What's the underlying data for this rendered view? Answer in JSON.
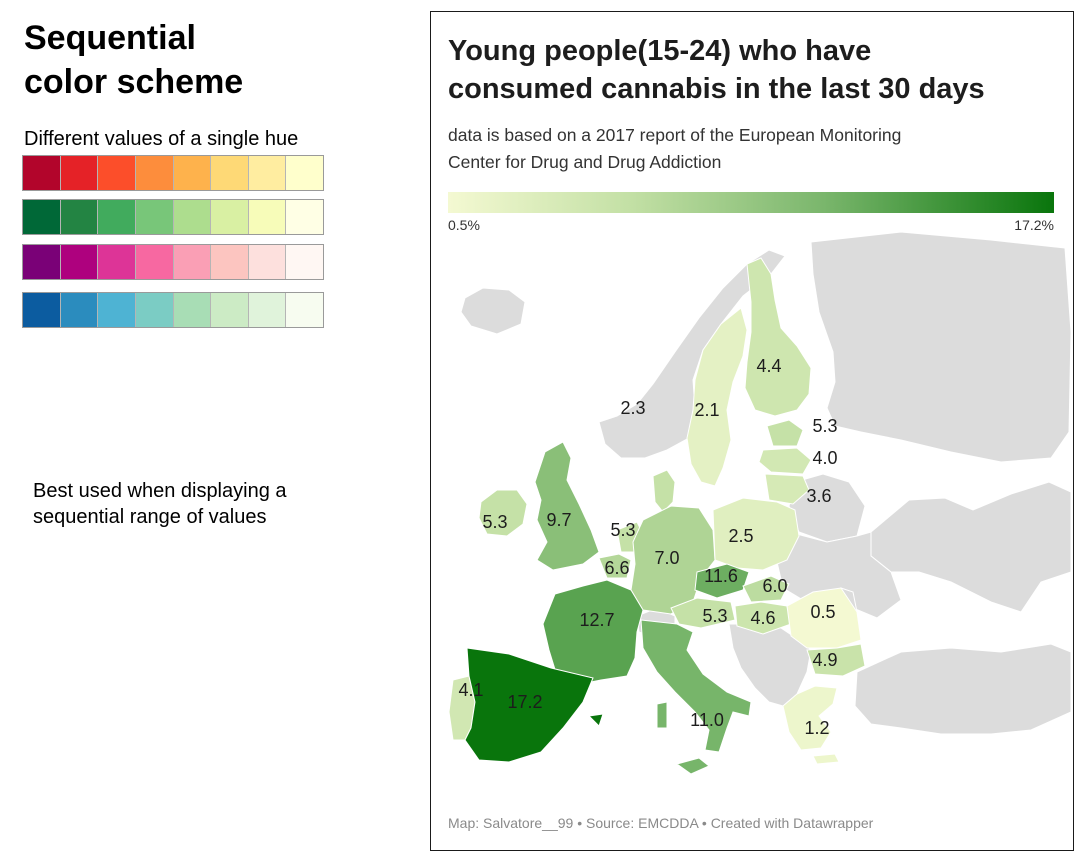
{
  "left": {
    "title_lines": [
      "Sequential",
      "color scheme"
    ],
    "swatch_caption": "Different values of a single hue",
    "best_used_lines": [
      "Best used when displaying a",
      "sequential range of values"
    ],
    "schemes": [
      [
        "#b2052b",
        "#e52227",
        "#fc4e2a",
        "#fd8d3c",
        "#feb24c",
        "#fed976",
        "#ffeda0",
        "#ffffcc"
      ],
      [
        "#006837",
        "#238443",
        "#41ab5d",
        "#78c679",
        "#addd8e",
        "#d9f0a3",
        "#f7fcb9",
        "#ffffe5"
      ],
      [
        "#7a0177",
        "#ae017e",
        "#dd3497",
        "#f768a1",
        "#fa9fb5",
        "#fcc5c0",
        "#fde0dd",
        "#fff7f3"
      ],
      [
        "#0c5ca0",
        "#2b8cbe",
        "#4eb3d3",
        "#7bccc4",
        "#a8ddb5",
        "#ccebc5",
        "#e0f3db",
        "#f7fcf0"
      ]
    ]
  },
  "map": {
    "title_lines": [
      "Young people(15-24) who have",
      "consumed cannabis in the last 30 days"
    ],
    "subtitle_lines": [
      "data is based on a 2017 report of the European Monitoring",
      "Center for Drug and Drug Addiction"
    ],
    "legend": {
      "min_label": "0.5%",
      "max_label": "17.2%",
      "min_value": 0.5,
      "max_value": 17.2,
      "color_low": "#f4f9d2",
      "color_high": "#09750c"
    },
    "no_data_color": "#dcdcdc",
    "footer": "Map: Salvatore__99 • Source: EMCDDA • Created with Datawrapper",
    "labels": [
      "2.3",
      "2.1",
      "4.4",
      "5.3",
      "4.0",
      "3.6",
      "5.3",
      "9.7",
      "5.3",
      "7.0",
      "2.5",
      "6.6",
      "11.6",
      "6.0",
      "12.7",
      "5.3",
      "4.6",
      "0.5",
      "4.9",
      "4.1",
      "17.2",
      "11.0",
      "1.2"
    ]
  }
}
